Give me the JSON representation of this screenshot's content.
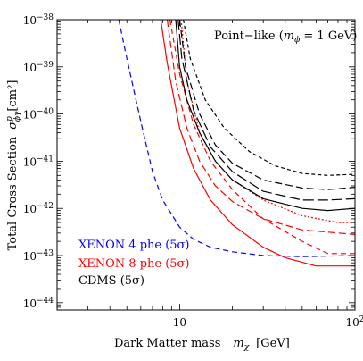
{
  "chart_data": {
    "type": "line",
    "xlabel": "Dark Matter mass",
    "xlabel_symbol": "m",
    "xlabel_sub": "χ",
    "xlabel_unit": "[GeV]",
    "ylabel": "Total Cross Section",
    "ylabel_symbol": "σ",
    "ylabel_sup": "p",
    "ylabel_sub": "ϕγ",
    "ylabel_unit": "[cm²]",
    "x_scale": "log",
    "y_scale": "log",
    "xlim": [
      2,
      100
    ],
    "ylim": [
      7e-45,
      1e-38
    ],
    "x_ticks": [
      {
        "value": 10,
        "base": "10",
        "exp": ""
      },
      {
        "value": 100,
        "base": "10",
        "exp": "2"
      }
    ],
    "y_ticks": [
      {
        "value": 1e-38,
        "base": "10",
        "exp": "−38"
      },
      {
        "value": 1e-39,
        "base": "10",
        "exp": "−39"
      },
      {
        "value": 1e-40,
        "base": "10",
        "exp": "−40"
      },
      {
        "value": 1e-41,
        "base": "10",
        "exp": "−41"
      },
      {
        "value": 1e-42,
        "base": "10",
        "exp": "−42"
      },
      {
        "value": 1e-43,
        "base": "10",
        "exp": "−43"
      },
      {
        "value": 1e-44,
        "base": "10",
        "exp": "−44"
      }
    ],
    "annotation": {
      "prefix": "Point−like (",
      "symbol": "m",
      "sub": "ϕ",
      "suffix": " = 1 GeV)"
    },
    "legend": [
      {
        "text": "XENON 4 phe (5σ)",
        "color": "#0000ff"
      },
      {
        "text": "XENON 8 phe (5σ)",
        "color": "#ff0000"
      },
      {
        "text": "CDMS (5σ)",
        "color": "#000000"
      }
    ],
    "series": [
      {
        "color": "#0000ff",
        "dash": "6,4",
        "points": [
          [
            4.5,
            1e-38
          ],
          [
            5,
            1.5e-39
          ],
          [
            6,
            7e-41
          ],
          [
            7,
            6e-42
          ],
          [
            8,
            1.5e-42
          ],
          [
            10,
            4e-43
          ],
          [
            12,
            2.2e-43
          ],
          [
            15,
            1.5e-43
          ],
          [
            20,
            1.2e-43
          ],
          [
            30,
            1e-43
          ],
          [
            50,
            9.5e-44
          ],
          [
            100,
            1e-43
          ]
        ]
      },
      {
        "color": "#ff0000",
        "dash": "",
        "points": [
          [
            7.8,
            1e-38
          ],
          [
            8.5,
            1.2e-39
          ],
          [
            10,
            5e-41
          ],
          [
            12,
            7e-42
          ],
          [
            15,
            1.5e-42
          ],
          [
            20,
            4.5e-43
          ],
          [
            30,
            1.5e-43
          ],
          [
            40,
            9e-44
          ],
          [
            60,
            6e-44
          ],
          [
            100,
            6e-44
          ]
        ]
      },
      {
        "color": "#ff0000",
        "dash": "8,4",
        "points": [
          [
            8.5,
            1e-38
          ],
          [
            9.5,
            5e-40
          ],
          [
            11,
            5e-41
          ],
          [
            13,
            1e-41
          ],
          [
            16,
            3e-42
          ],
          [
            20,
            1.4e-42
          ],
          [
            30,
            6e-43
          ],
          [
            50,
            3.5e-43
          ],
          [
            100,
            2.8e-43
          ]
        ]
      },
      {
        "color": "#ff0000",
        "dash": "6,4",
        "points": [
          [
            8.8,
            1e-38
          ],
          [
            10,
            7e-40
          ],
          [
            12,
            6e-41
          ],
          [
            15,
            1e-41
          ],
          [
            20,
            2.5e-42
          ],
          [
            30,
            6e-43
          ],
          [
            50,
            2e-43
          ],
          [
            70,
            1.1e-43
          ],
          [
            100,
            1.1e-43
          ]
        ]
      },
      {
        "color": "#ff0000",
        "dash": "2,2",
        "points": [
          [
            10.2,
            1e-38
          ],
          [
            11,
            5e-40
          ],
          [
            13,
            4e-41
          ],
          [
            16,
            1e-41
          ],
          [
            20,
            4e-42
          ],
          [
            30,
            1.5e-42
          ],
          [
            50,
            7e-43
          ],
          [
            80,
            5e-43
          ],
          [
            100,
            5e-43
          ]
        ]
      },
      {
        "color": "#000000",
        "dash": "",
        "points": [
          [
            9.5,
            1e-38
          ],
          [
            10,
            1e-39
          ],
          [
            11,
            2e-40
          ],
          [
            13,
            4e-41
          ],
          [
            16,
            1e-41
          ],
          [
            20,
            4e-42
          ],
          [
            30,
            1.6e-42
          ],
          [
            50,
            1e-42
          ],
          [
            70,
            9e-43
          ],
          [
            100,
            1e-42
          ]
        ]
      },
      {
        "color": "#000000",
        "dash": "12,4",
        "points": [
          [
            9.8,
            1e-38
          ],
          [
            10.3,
            1.5e-39
          ],
          [
            12,
            1.2e-40
          ],
          [
            15,
            2e-41
          ],
          [
            20,
            6e-42
          ],
          [
            30,
            2.3e-42
          ],
          [
            50,
            1.5e-42
          ],
          [
            70,
            1.5e-42
          ],
          [
            100,
            1.6e-42
          ]
        ]
      },
      {
        "color": "#000000",
        "dash": "8,4",
        "points": [
          [
            10,
            1e-38
          ],
          [
            10.8,
            1e-39
          ],
          [
            13,
            1e-40
          ],
          [
            16,
            2.2e-41
          ],
          [
            20,
            9e-42
          ],
          [
            30,
            4e-42
          ],
          [
            50,
            2.7e-42
          ],
          [
            70,
            2.5e-42
          ],
          [
            100,
            2.8e-42
          ]
        ]
      },
      {
        "color": "#000000",
        "dash": "4,3",
        "points": [
          [
            10.5,
            1e-38
          ],
          [
            11.5,
            1.5e-39
          ],
          [
            14,
            2e-40
          ],
          [
            18,
            5e-41
          ],
          [
            25,
            1.6e-41
          ],
          [
            35,
            8e-42
          ],
          [
            50,
            5.5e-42
          ],
          [
            70,
            5e-42
          ],
          [
            100,
            5.3e-42
          ]
        ]
      }
    ]
  }
}
